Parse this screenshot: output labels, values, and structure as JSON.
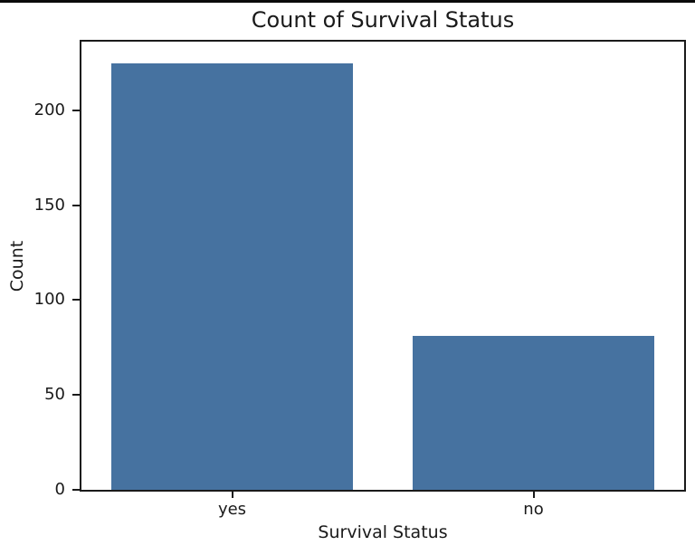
{
  "chart_data": {
    "type": "bar",
    "title": "Count of Survival Status",
    "xlabel": "Survival Status",
    "ylabel": "Count",
    "categories": [
      "yes",
      "no"
    ],
    "values": [
      225,
      81
    ],
    "yticks": [
      0,
      50,
      100,
      150,
      200
    ],
    "ylim": [
      0,
      236.25
    ],
    "bar_width_fraction": 0.8,
    "grid": false,
    "legend_position": "none",
    "colors": {
      "bar": "#4672A0",
      "axis": "#1a1a1a",
      "plot_background": "#ffffff",
      "figure_background": "#ffffff",
      "top_border": "#0a0a0a"
    }
  }
}
